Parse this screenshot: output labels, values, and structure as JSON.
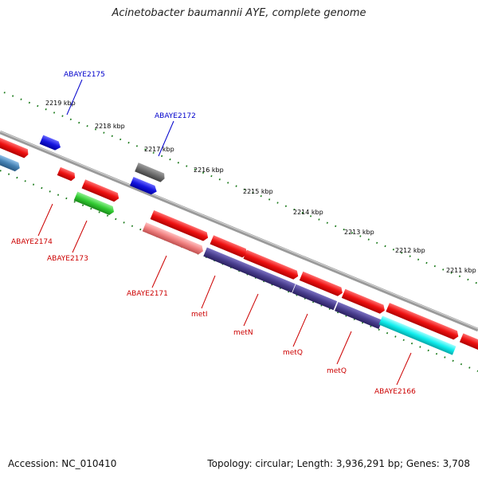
{
  "title": "Acinetobacter baumannii AYE, complete genome",
  "footer": {
    "accession": "Accession: NC_010410",
    "summary": "Topology: circular; Length: 3,936,291 bp; Genes: 3,708"
  },
  "scale_labels": [
    "2219 kbp",
    "2218 kbp",
    "2217 kbp",
    "2216 kbp",
    "2215 kbp",
    "2214 kbp",
    "2213 kbp",
    "2212 kbp",
    "2211 kbp"
  ],
  "gene_labels": {
    "ABAYE2175": "ABAYE2175",
    "ABAYE2172": "ABAYE2172",
    "ABAYE2174": "ABAYE2174",
    "ABAYE2173": "ABAYE2173",
    "ABAYE2171": "ABAYE2171",
    "metI": "metI",
    "metN": "metN",
    "metQ_a": "metQ",
    "metQ_b": "metQ",
    "ABAYE2166": "ABAYE2166"
  },
  "colors": {
    "backbone": "#888888",
    "tick": "#1a7a1a",
    "red": "#ee1111",
    "blue": "#1515e0",
    "gray": "#6e6e6e",
    "green": "#33cc33",
    "pink": "#f08080",
    "purple": "#4a3f8f",
    "cyan": "#11eeee",
    "steel": "#4682b4",
    "label_blue": "#0000cc",
    "label_red": "#cc0000"
  }
}
